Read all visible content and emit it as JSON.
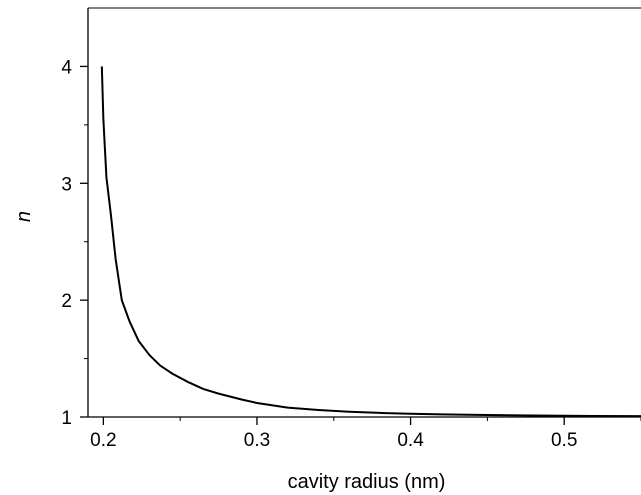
{
  "chart_data": {
    "type": "line",
    "xlabel": "cavity radius (nm)",
    "ylabel": "n",
    "xlim": [
      0.19,
      0.55
    ],
    "ylim": [
      1,
      4.5
    ],
    "x_ticks": [
      "0.2",
      "0.3",
      "0.4",
      "0.5"
    ],
    "y_ticks": [
      "1",
      "2",
      "3",
      "4"
    ],
    "grid": false,
    "series": [
      {
        "x": [
          0.199,
          0.2,
          0.202,
          0.205,
          0.208,
          0.212,
          0.217,
          0.223,
          0.23,
          0.237,
          0.245,
          0.255,
          0.265,
          0.275,
          0.29,
          0.3,
          0.32,
          0.34,
          0.36,
          0.38,
          0.4,
          0.42,
          0.45,
          0.48,
          0.5,
          0.52,
          0.55
        ],
        "y": [
          4.0,
          3.55,
          3.05,
          2.72,
          2.35,
          2.0,
          1.82,
          1.65,
          1.53,
          1.44,
          1.37,
          1.3,
          1.24,
          1.2,
          1.15,
          1.12,
          1.08,
          1.06,
          1.045,
          1.035,
          1.028,
          1.022,
          1.017,
          1.013,
          1.011,
          1.009,
          1.007
        ]
      }
    ]
  }
}
